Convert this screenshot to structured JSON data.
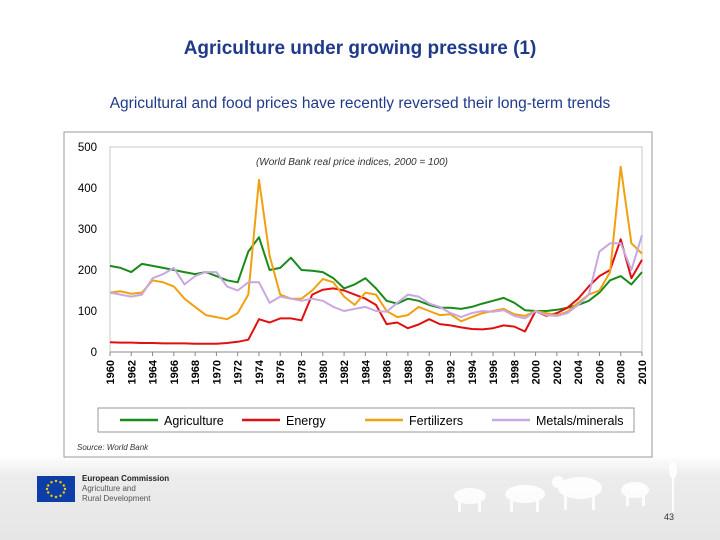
{
  "slide": {
    "title": "Agriculture under growing pressure (1)",
    "subtitle": "Agricultural and food prices have recently reversed their long-term trends",
    "source": "Source: World Bank",
    "logo_line1": "European Commission",
    "logo_line2": "Agriculture and",
    "logo_line3": "Rural Development",
    "page_number": "43"
  },
  "chart_data": {
    "type": "line",
    "annotation": "(World Bank real price indices, 2000 = 100)",
    "ylim": [
      0,
      500
    ],
    "yticks": [
      "0",
      "100",
      "200",
      "300",
      "400",
      "500"
    ],
    "xlim": [
      1960,
      2010
    ],
    "xticks": [
      "1960",
      "1962",
      "1964",
      "1966",
      "1968",
      "1970",
      "1972",
      "1974",
      "1976",
      "1978",
      "1980",
      "1982",
      "1984",
      "1986",
      "1988",
      "1990",
      "1992",
      "1994",
      "1996",
      "1998",
      "2000",
      "2002",
      "2004",
      "2006",
      "2008",
      "2010"
    ],
    "grid": false,
    "legend_position": "bottom",
    "x": [
      1960,
      1961,
      1962,
      1963,
      1964,
      1965,
      1966,
      1967,
      1968,
      1969,
      1970,
      1971,
      1972,
      1973,
      1974,
      1975,
      1976,
      1977,
      1978,
      1979,
      1980,
      1981,
      1982,
      1983,
      1984,
      1985,
      1986,
      1987,
      1988,
      1989,
      1990,
      1991,
      1992,
      1993,
      1994,
      1995,
      1996,
      1997,
      1998,
      1999,
      2000,
      2001,
      2002,
      2003,
      2004,
      2005,
      2006,
      2007,
      2008,
      2009,
      2010
    ],
    "series": [
      {
        "name": "Agriculture",
        "color": "#1a8a1a",
        "values": [
          210,
          205,
          195,
          215,
          210,
          205,
          200,
          195,
          190,
          195,
          185,
          175,
          170,
          245,
          280,
          200,
          205,
          230,
          200,
          198,
          195,
          180,
          155,
          165,
          180,
          155,
          125,
          118,
          130,
          125,
          115,
          108,
          108,
          105,
          110,
          118,
          125,
          132,
          120,
          102,
          100,
          100,
          103,
          108,
          115,
          125,
          145,
          175,
          185,
          165,
          195
        ]
      },
      {
        "name": "Energy",
        "color": "#e01010",
        "values": [
          24,
          23,
          23,
          22,
          22,
          21,
          21,
          21,
          20,
          20,
          20,
          22,
          25,
          30,
          80,
          72,
          82,
          82,
          77,
          140,
          152,
          155,
          150,
          140,
          130,
          115,
          68,
          72,
          58,
          67,
          80,
          68,
          65,
          60,
          56,
          55,
          58,
          65,
          62,
          50,
          100,
          88,
          95,
          108,
          130,
          160,
          185,
          200,
          275,
          180,
          225
        ]
      },
      {
        "name": "Fertilizers",
        "color": "#f0a010",
        "values": [
          145,
          148,
          142,
          145,
          175,
          170,
          160,
          130,
          110,
          90,
          85,
          80,
          95,
          140,
          420,
          235,
          140,
          130,
          130,
          150,
          178,
          170,
          135,
          115,
          145,
          140,
          100,
          85,
          90,
          110,
          100,
          90,
          92,
          75,
          85,
          95,
          100,
          105,
          92,
          88,
          100,
          95,
          90,
          98,
          120,
          140,
          150,
          195,
          452,
          265,
          240
        ]
      },
      {
        "name": "Metals/minerals",
        "color": "#c8a8e0",
        "values": [
          145,
          140,
          135,
          140,
          180,
          190,
          205,
          165,
          185,
          195,
          195,
          160,
          150,
          170,
          170,
          120,
          135,
          130,
          125,
          130,
          125,
          110,
          100,
          105,
          110,
          100,
          98,
          120,
          140,
          135,
          118,
          110,
          95,
          85,
          95,
          100,
          98,
          102,
          88,
          82,
          100,
          90,
          88,
          95,
          115,
          140,
          245,
          265,
          265,
          200,
          285
        ]
      }
    ]
  }
}
